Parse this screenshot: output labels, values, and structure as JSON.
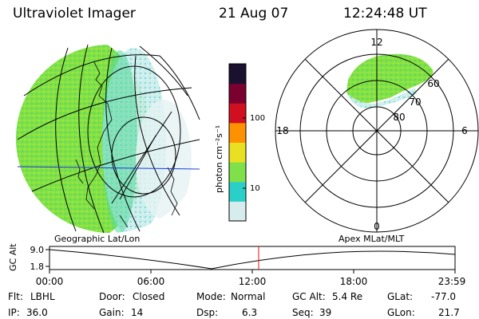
{
  "header": {
    "instrument": "Ultraviolet Imager",
    "date": "21 Aug 07",
    "time": "12:24:48 UT"
  },
  "colorbar": {
    "unit_label": "photon cm⁻²s⁻¹",
    "ticks": [
      "100",
      "10"
    ],
    "colors": [
      "#d7ecec",
      "#2ad0c8",
      "#7fe04a",
      "#e8e020",
      "#ff9000",
      "#d01020",
      "#7a0030",
      "#1a1030"
    ]
  },
  "polar_plot": {
    "mlt_labels": [
      "12",
      "18",
      "6",
      "0"
    ],
    "lat_labels": [
      "60",
      "70",
      "80"
    ]
  },
  "altitude_plot": {
    "left_title": "Geographic Lat/Lon",
    "right_title": "Apex MLat/MLT",
    "y_axis_label": "GC Alt",
    "y_ticks": [
      "9.0",
      "1.8"
    ],
    "x_ticks": [
      "00:00",
      "06:00",
      "12:00",
      "18:00",
      "23:59"
    ]
  },
  "footer": {
    "row1": [
      {
        "label": "Flt:",
        "value": "LBHL"
      },
      {
        "label": "Door:",
        "value": "Closed"
      },
      {
        "label": "Mode:",
        "value": "Normal"
      },
      {
        "label": "GC Alt:",
        "value": "5.4 Re"
      },
      {
        "label": "GLat:",
        "value": "-77.0"
      }
    ],
    "row2": [
      {
        "label": "IP:",
        "value": "36.0"
      },
      {
        "label": "Gain:",
        "value": "14"
      },
      {
        "label": "Dsp:",
        "value": "6.3"
      },
      {
        "label": "Seq:",
        "value": "39"
      },
      {
        "label": "GLon:",
        "value": "21.7"
      }
    ]
  }
}
